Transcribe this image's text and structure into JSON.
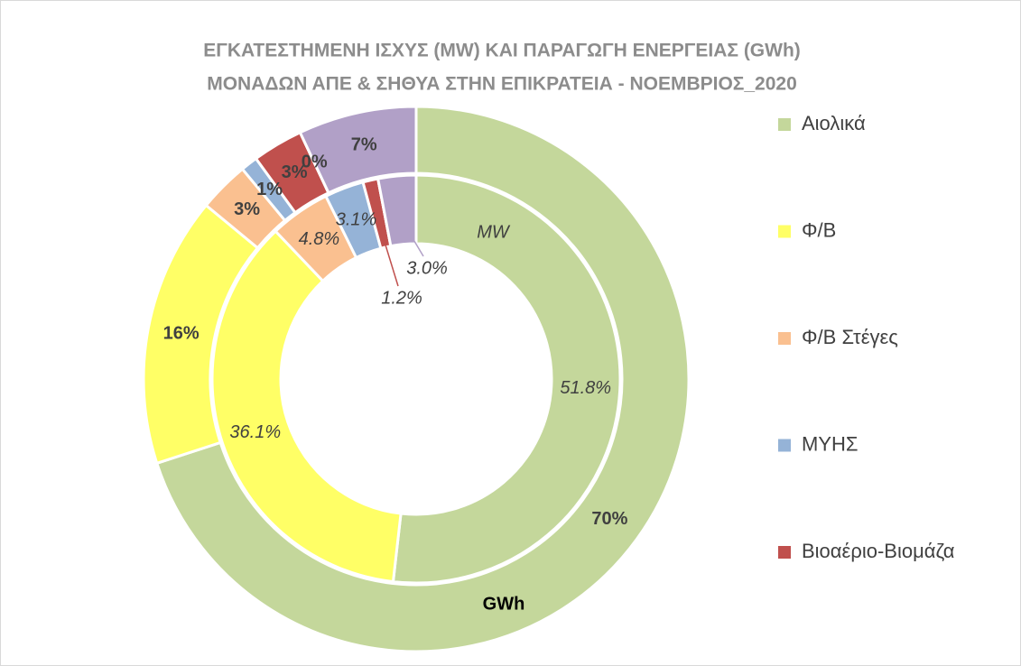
{
  "chart_data": {
    "type": "donut",
    "title": [
      "ΕΓΚΑΤΕΣΤΗΜΕΝΗ ΙΣΧΥΣ (MW) ΚΑΙ ΠΑΡΑΓΩΓΗ ΕΝΕΡΓΕΙΑΣ (GWh)",
      "ΜΟΝΑΔΩΝ ΑΠΕ & ΣΗΘΥΑ ΣΤΗΝ ΕΠΙΚΡΑΤΕΙΑ -  ΝΟΕΜΒΡΙΟΣ_2020"
    ],
    "categories": [
      "Αιολικά",
      "Φ/Β",
      "Φ/Β Στέγες",
      "ΜΥΗΣ",
      "Βιοαέριο-Βιομάζα",
      null,
      null
    ],
    "colors": [
      "#c4d79b",
      "#ffff66",
      "#fac090",
      "#95b3d7",
      "#c0504d",
      "#a6a6a6",
      "#b1a0c7"
    ],
    "series": [
      {
        "name": "MW",
        "values": [
          51.8,
          36.1,
          4.8,
          3.1,
          1.2,
          0,
          3.0
        ],
        "value_labels": [
          "51.8%",
          "36.1%",
          "4.8%",
          "3.1%",
          "1.2%",
          null,
          "3.0%"
        ]
      },
      {
        "name": "GWh",
        "values": [
          70,
          16,
          3,
          1,
          3,
          0,
          7
        ],
        "value_labels": [
          "70%",
          "16%",
          "3%",
          "1%",
          "3%",
          "0%",
          "7%"
        ]
      }
    ],
    "legend": "right"
  }
}
